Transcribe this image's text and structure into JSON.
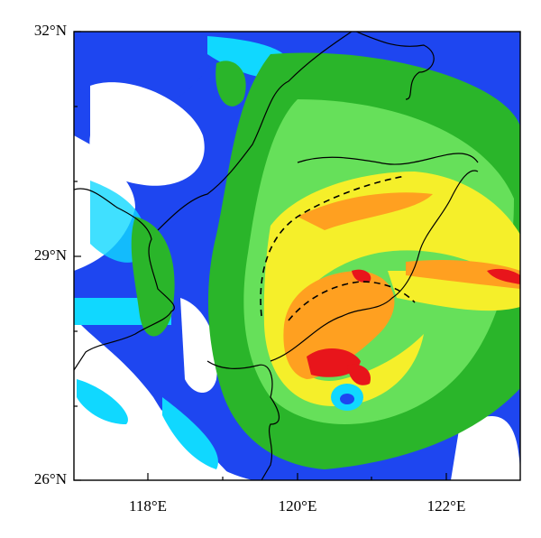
{
  "map": {
    "lat_labels": [
      "32°N",
      "29°N",
      "26°N"
    ],
    "lon_labels": [
      "118°E",
      "120°E",
      "122°E"
    ]
  }
}
